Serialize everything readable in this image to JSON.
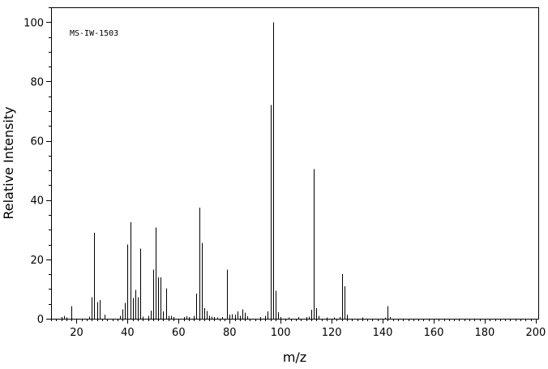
{
  "chart_data": {
    "type": "bar",
    "title": "",
    "annotation": "MS-IW-1503",
    "xlabel": "m/z",
    "ylabel": "Relative Intensity",
    "xlim": [
      10,
      201
    ],
    "ylim": [
      0,
      105
    ],
    "x_ticks": [
      20,
      40,
      60,
      80,
      100,
      120,
      140,
      160,
      180,
      200
    ],
    "y_ticks": [
      0,
      20,
      40,
      60,
      80,
      100
    ],
    "grid": false,
    "series": [
      {
        "points": [
          [
            14,
            0.6
          ],
          [
            15,
            1.0
          ],
          [
            16,
            0.4
          ],
          [
            18,
            4.2
          ],
          [
            25,
            0.7
          ],
          [
            26,
            7.3
          ],
          [
            27,
            29.0
          ],
          [
            28,
            5.6
          ],
          [
            29,
            6.3
          ],
          [
            31,
            1.3
          ],
          [
            37,
            0.9
          ],
          [
            38,
            3.2
          ],
          [
            39,
            5.3
          ],
          [
            40,
            25.0
          ],
          [
            41,
            32.5
          ],
          [
            42,
            7.0
          ],
          [
            43,
            9.7
          ],
          [
            44,
            7.3
          ],
          [
            45,
            23.6
          ],
          [
            46,
            0.7
          ],
          [
            48,
            1.0
          ],
          [
            49,
            2.8
          ],
          [
            50,
            16.5
          ],
          [
            51,
            30.8
          ],
          [
            52,
            14.0
          ],
          [
            53,
            14.0
          ],
          [
            54,
            2.5
          ],
          [
            55,
            10.2
          ],
          [
            56,
            1.0
          ],
          [
            57,
            1.0
          ],
          [
            58,
            0.6
          ],
          [
            62,
            0.5
          ],
          [
            63,
            0.8
          ],
          [
            64,
            0.6
          ],
          [
            66,
            1.0
          ],
          [
            67,
            8.5
          ],
          [
            68,
            37.5
          ],
          [
            69,
            25.5
          ],
          [
            70,
            3.6
          ],
          [
            71,
            2.6
          ],
          [
            72,
            1.0
          ],
          [
            73,
            0.7
          ],
          [
            74,
            0.5
          ],
          [
            75,
            0.4
          ],
          [
            77,
            0.5
          ],
          [
            79,
            16.5
          ],
          [
            80,
            1.4
          ],
          [
            81,
            1.5
          ],
          [
            82,
            1.4
          ],
          [
            83,
            2.4
          ],
          [
            84,
            1.0
          ],
          [
            85,
            3.1
          ],
          [
            86,
            2.0
          ],
          [
            87,
            0.8
          ],
          [
            92,
            0.6
          ],
          [
            94,
            0.9
          ],
          [
            95,
            2.5
          ],
          [
            96,
            72.0
          ],
          [
            97,
            100.0
          ],
          [
            98,
            9.5
          ],
          [
            99,
            2.2
          ],
          [
            100,
            0.5
          ],
          [
            103,
            0.4
          ],
          [
            107,
            0.6
          ],
          [
            110,
            0.5
          ],
          [
            111,
            0.7
          ],
          [
            112,
            3.0
          ],
          [
            113,
            50.5
          ],
          [
            114,
            3.5
          ],
          [
            115,
            1.0
          ],
          [
            118,
            0.4
          ],
          [
            121,
            0.4
          ],
          [
            123,
            0.6
          ],
          [
            124,
            15.0
          ],
          [
            125,
            11.0
          ],
          [
            126,
            1.4
          ],
          [
            132,
            0.4
          ],
          [
            141,
            0.4
          ],
          [
            142,
            4.3
          ],
          [
            143,
            0.6
          ]
        ]
      }
    ]
  }
}
